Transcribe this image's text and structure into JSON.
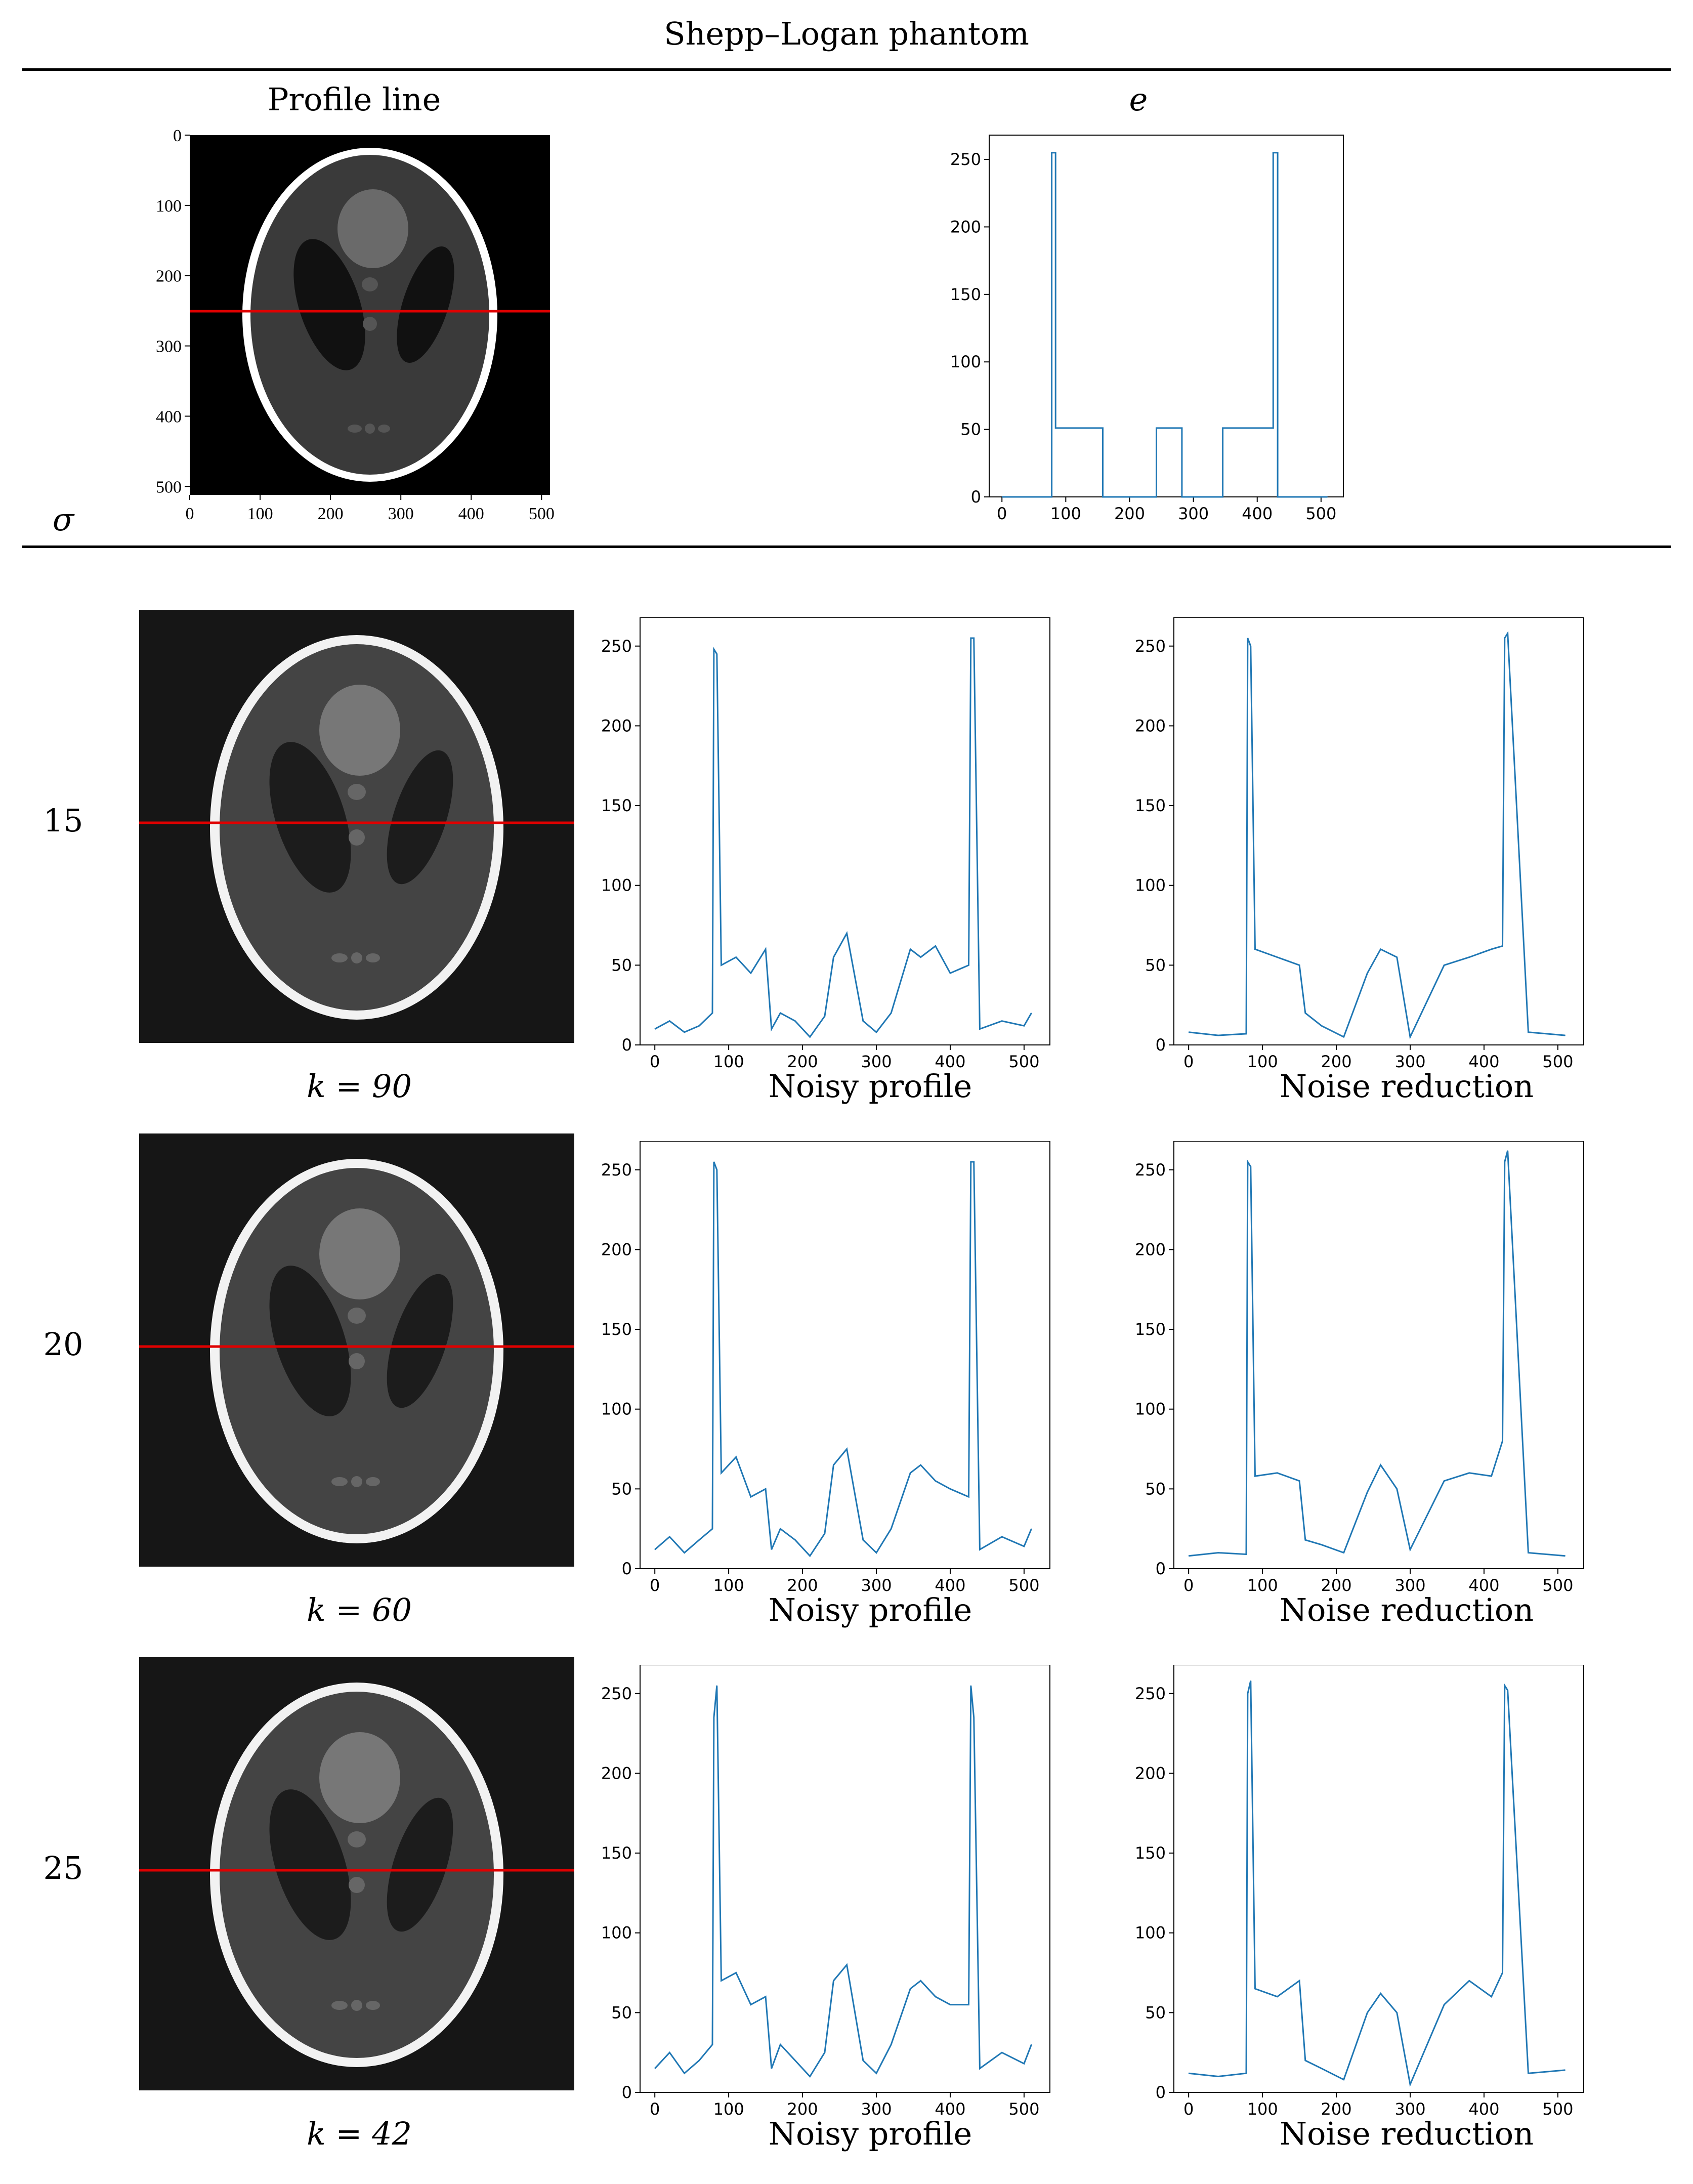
{
  "figure": {
    "title": "Shepp–Logan phantom",
    "header": {
      "col_profile_line": "Profile line",
      "col_e": "e",
      "row_sigma": "σ"
    },
    "reference_axes": {
      "x_ticks": [
        "0",
        "100",
        "200",
        "300",
        "400",
        "500"
      ],
      "y_ticks": [
        "0",
        "100",
        "200",
        "300",
        "400",
        "500"
      ]
    },
    "rows": [
      {
        "sigma": "15",
        "k_label": "k = 90",
        "noisy_label": "Noisy profile",
        "denoised_label": "Noise reduction"
      },
      {
        "sigma": "20",
        "k_label": "k = 60",
        "noisy_label": "Noisy profile",
        "denoised_label": "Noise reduction"
      },
      {
        "sigma": "25",
        "k_label": "k = 42",
        "noisy_label": "Noisy profile",
        "denoised_label": "Noise reduction"
      }
    ],
    "colors": {
      "profile_line": "#e00000",
      "series": "#1f77b4"
    }
  },
  "chart_data": [
    {
      "type": "line",
      "title": "e",
      "xlabel": "",
      "ylabel": "",
      "xlim": [
        -20,
        535
      ],
      "ylim": [
        0,
        268
      ],
      "x_ticks": [
        "0",
        "100",
        "200",
        "300",
        "400",
        "500"
      ],
      "y_ticks": [
        "0",
        "50",
        "100",
        "150",
        "200",
        "250"
      ],
      "x": [
        0,
        78,
        78,
        84,
        84,
        158,
        158,
        242,
        242,
        282,
        282,
        346,
        346,
        425,
        425,
        432,
        432,
        510
      ],
      "values": [
        0,
        0,
        255,
        255,
        51,
        51,
        0,
        0,
        51,
        51,
        0,
        0,
        51,
        51,
        255,
        255,
        0,
        0
      ]
    },
    {
      "type": "line",
      "title": "Noisy profile (σ = 15)",
      "xlabel": "",
      "ylabel": "",
      "xlim": [
        -20,
        535
      ],
      "ylim": [
        0,
        268
      ],
      "x_ticks": [
        "0",
        "100",
        "200",
        "300",
        "400",
        "500"
      ],
      "y_ticks": [
        "0",
        "50",
        "100",
        "150",
        "200",
        "250"
      ],
      "x": [
        0,
        20,
        40,
        60,
        78,
        80,
        84,
        90,
        110,
        130,
        150,
        158,
        170,
        190,
        210,
        230,
        242,
        260,
        282,
        300,
        320,
        346,
        360,
        380,
        400,
        425,
        428,
        432,
        440,
        470,
        500,
        510
      ],
      "values": [
        10,
        15,
        8,
        12,
        20,
        248,
        245,
        50,
        55,
        45,
        60,
        10,
        20,
        15,
        5,
        18,
        55,
        70,
        15,
        8,
        20,
        60,
        55,
        62,
        45,
        50,
        255,
        255,
        10,
        15,
        12,
        20
      ]
    },
    {
      "type": "line",
      "title": "Noise reduction (σ = 15)",
      "xlabel": "",
      "ylabel": "",
      "xlim": [
        -20,
        535
      ],
      "ylim": [
        0,
        268
      ],
      "x_ticks": [
        "0",
        "100",
        "200",
        "300",
        "400",
        "500"
      ],
      "y_ticks": [
        "0",
        "50",
        "100",
        "150",
        "200",
        "250"
      ],
      "x": [
        0,
        40,
        78,
        80,
        84,
        90,
        120,
        150,
        158,
        180,
        210,
        242,
        260,
        282,
        300,
        346,
        380,
        410,
        425,
        428,
        432,
        460,
        510
      ],
      "values": [
        8,
        6,
        7,
        255,
        250,
        60,
        55,
        50,
        20,
        12,
        5,
        45,
        60,
        55,
        5,
        50,
        55,
        60,
        62,
        255,
        258,
        8,
        6
      ]
    },
    {
      "type": "line",
      "title": "Noisy profile (σ = 20)",
      "xlabel": "",
      "ylabel": "",
      "xlim": [
        -20,
        535
      ],
      "ylim": [
        0,
        268
      ],
      "x_ticks": [
        "0",
        "100",
        "200",
        "300",
        "400",
        "500"
      ],
      "y_ticks": [
        "0",
        "50",
        "100",
        "150",
        "200",
        "250"
      ],
      "x": [
        0,
        20,
        40,
        60,
        78,
        80,
        84,
        90,
        110,
        130,
        150,
        158,
        170,
        190,
        210,
        230,
        242,
        260,
        282,
        300,
        320,
        346,
        360,
        380,
        400,
        425,
        428,
        432,
        440,
        470,
        500,
        510
      ],
      "values": [
        12,
        20,
        10,
        18,
        25,
        255,
        250,
        60,
        70,
        45,
        50,
        12,
        25,
        18,
        8,
        22,
        65,
        75,
        18,
        10,
        25,
        60,
        65,
        55,
        50,
        45,
        255,
        255,
        12,
        20,
        14,
        25
      ]
    },
    {
      "type": "line",
      "title": "Noise reduction (σ = 20)",
      "xlabel": "",
      "ylabel": "",
      "xlim": [
        -20,
        535
      ],
      "ylim": [
        0,
        268
      ],
      "x_ticks": [
        "0",
        "100",
        "200",
        "300",
        "400",
        "500"
      ],
      "y_ticks": [
        "0",
        "50",
        "100",
        "150",
        "200",
        "250"
      ],
      "x": [
        0,
        40,
        78,
        80,
        84,
        90,
        120,
        150,
        158,
        180,
        210,
        242,
        260,
        282,
        300,
        346,
        380,
        410,
        425,
        428,
        432,
        460,
        510
      ],
      "values": [
        8,
        10,
        9,
        255,
        252,
        58,
        60,
        55,
        18,
        15,
        10,
        48,
        65,
        50,
        12,
        55,
        60,
        58,
        80,
        255,
        262,
        10,
        8
      ]
    },
    {
      "type": "line",
      "title": "Noisy profile (σ = 25)",
      "xlabel": "",
      "ylabel": "",
      "xlim": [
        -20,
        535
      ],
      "ylim": [
        0,
        268
      ],
      "x_ticks": [
        "0",
        "100",
        "200",
        "300",
        "400",
        "500"
      ],
      "y_ticks": [
        "0",
        "50",
        "100",
        "150",
        "200",
        "250"
      ],
      "x": [
        0,
        20,
        40,
        60,
        78,
        80,
        84,
        90,
        110,
        130,
        150,
        158,
        170,
        190,
        210,
        230,
        242,
        260,
        282,
        300,
        320,
        346,
        360,
        380,
        400,
        425,
        428,
        432,
        440,
        470,
        500,
        510
      ],
      "values": [
        15,
        25,
        12,
        20,
        30,
        235,
        255,
        70,
        75,
        55,
        60,
        15,
        30,
        20,
        10,
        25,
        70,
        80,
        20,
        12,
        30,
        65,
        70,
        60,
        55,
        55,
        255,
        235,
        15,
        25,
        18,
        30
      ]
    },
    {
      "type": "line",
      "title": "Noise reduction (σ = 25)",
      "xlabel": "",
      "ylabel": "",
      "xlim": [
        -20,
        535
      ],
      "ylim": [
        0,
        268
      ],
      "x_ticks": [
        "0",
        "100",
        "200",
        "300",
        "400",
        "500"
      ],
      "y_ticks": [
        "0",
        "50",
        "100",
        "150",
        "200",
        "250"
      ],
      "x": [
        0,
        40,
        78,
        80,
        84,
        90,
        120,
        150,
        158,
        180,
        210,
        242,
        260,
        282,
        300,
        346,
        380,
        410,
        425,
        428,
        432,
        460,
        510
      ],
      "values": [
        12,
        10,
        12,
        250,
        258,
        65,
        60,
        70,
        20,
        15,
        8,
        50,
        62,
        50,
        5,
        55,
        70,
        60,
        75,
        255,
        252,
        12,
        14
      ]
    }
  ]
}
